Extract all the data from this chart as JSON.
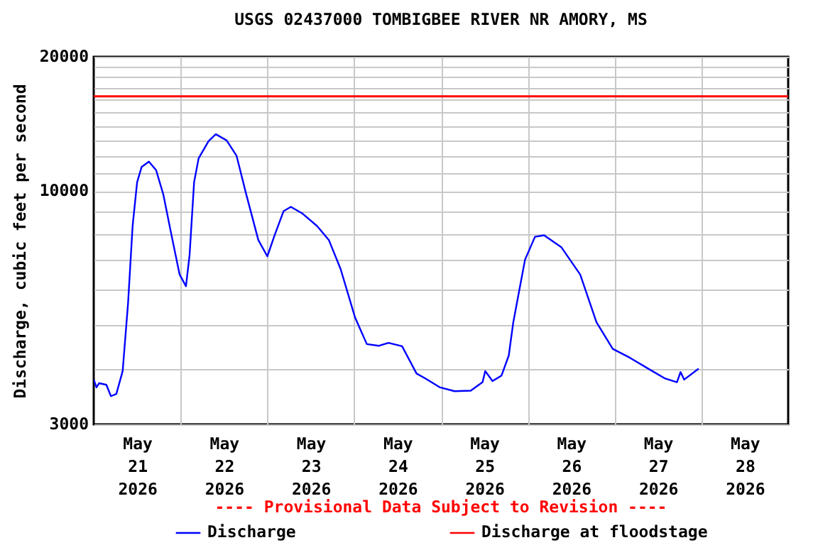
{
  "chart_data": {
    "type": "line",
    "title": "USGS 02437000 TOMBIGBEE RIVER NR AMORY, MS",
    "ylabel": "Discharge, cubic feet per second",
    "annotations": [
      "---- Provisional Data Subject to Revision ----"
    ],
    "x": [
      "2026-05-21T00:00",
      "2026-05-21T00:45",
      "2026-05-21T01:30",
      "2026-05-21T03:30",
      "2026-05-21T04:45",
      "2026-05-21T06:15",
      "2026-05-21T08:00",
      "2026-05-21T09:30",
      "2026-05-21T10:45",
      "2026-05-21T12:00",
      "2026-05-21T13:15",
      "2026-05-21T15:15",
      "2026-05-21T17:15",
      "2026-05-21T19:15",
      "2026-05-21T21:15",
      "2026-05-21T23:45",
      "2026-05-22T01:30",
      "2026-05-22T02:30",
      "2026-05-22T03:45",
      "2026-05-22T05:00",
      "2026-05-22T07:45",
      "2026-05-22T09:45",
      "2026-05-22T12:45",
      "2026-05-22T15:30",
      "2026-05-22T18:00",
      "2026-05-22T21:30",
      "2026-05-23T00:00",
      "2026-05-23T02:00",
      "2026-05-23T04:30",
      "2026-05-23T06:30",
      "2026-05-23T09:45",
      "2026-05-23T13:45",
      "2026-05-23T17:00",
      "2026-05-23T20:15",
      "2026-05-24T00:15",
      "2026-05-24T03:30",
      "2026-05-24T06:45",
      "2026-05-24T09:30",
      "2026-05-24T13:15",
      "2026-05-24T17:15",
      "2026-05-24T19:45",
      "2026-05-24T23:45",
      "2026-05-25T03:45",
      "2026-05-25T08:15",
      "2026-05-25T11:30",
      "2026-05-25T12:15",
      "2026-05-25T14:15",
      "2026-05-25T16:45",
      "2026-05-25T18:45",
      "2026-05-25T20:00",
      "2026-05-25T21:30",
      "2026-05-25T23:15",
      "2026-05-26T02:00",
      "2026-05-26T04:30",
      "2026-05-26T09:15",
      "2026-05-26T14:30",
      "2026-05-26T19:00",
      "2026-05-26T23:30",
      "2026-05-27T04:15",
      "2026-05-27T09:30",
      "2026-05-27T14:00",
      "2026-05-27T17:15",
      "2026-05-27T18:15",
      "2026-05-27T19:15",
      "2026-05-27T23:15"
    ],
    "series": [
      {
        "name": "Discharge",
        "color": "#0000ff",
        "values": [
          3780,
          3630,
          3710,
          3680,
          3470,
          3510,
          3950,
          5620,
          8350,
          10470,
          11330,
          11640,
          11140,
          9820,
          8150,
          6500,
          6120,
          7190,
          10470,
          11840,
          12940,
          13410,
          12990,
          11990,
          9950,
          7770,
          7140,
          7960,
          9020,
          9220,
          8900,
          8350,
          7770,
          6690,
          5210,
          4540,
          4500,
          4570,
          4490,
          3900,
          3800,
          3630,
          3560,
          3570,
          3730,
          3950,
          3750,
          3860,
          4280,
          5080,
          5900,
          7020,
          7900,
          7960,
          7490,
          6500,
          5080,
          4430,
          4230,
          3990,
          3800,
          3730,
          3930,
          3780,
          4000
        ]
      }
    ],
    "ref_lines": [
      {
        "axis": "y",
        "value": 16300,
        "label": "Discharge at floodstage",
        "color": "#ff0000"
      }
    ],
    "xlim": [
      "2026-05-21T00:00",
      "2026-05-29T00:00"
    ],
    "xticks": [
      {
        "value": "2026-05-21T12:00",
        "label": "May 21 2026"
      },
      {
        "value": "2026-05-22T00:00",
        "label": null
      },
      {
        "value": "2026-05-22T12:00",
        "label": "May 22 2026"
      },
      {
        "value": "2026-05-23T00:00",
        "label": null
      },
      {
        "value": "2026-05-23T12:00",
        "label": "May 23 2026"
      },
      {
        "value": "2026-05-24T00:00",
        "label": null
      },
      {
        "value": "2026-05-24T12:00",
        "label": "May 24 2026"
      },
      {
        "value": "2026-05-25T00:00",
        "label": null
      },
      {
        "value": "2026-05-25T12:00",
        "label": "May 25 2026"
      },
      {
        "value": "2026-05-26T00:00",
        "label": null
      },
      {
        "value": "2026-05-26T12:00",
        "label": "May 26 2026"
      },
      {
        "value": "2026-05-27T00:00",
        "label": null
      },
      {
        "value": "2026-05-27T12:00",
        "label": "May 27 2026"
      },
      {
        "value": "2026-05-28T00:00",
        "label": null
      },
      {
        "value": "2026-05-28T12:00",
        "label": "May 28 2026"
      }
    ],
    "ylim": [
      3000,
      20000
    ],
    "yticks": [
      3000,
      {
        "value": 4000,
        "label": null
      },
      {
        "value": 5000,
        "label": null
      },
      {
        "value": 6000,
        "label": null
      },
      {
        "value": 7000,
        "label": null
      },
      {
        "value": 8000,
        "label": null
      },
      {
        "value": 9000,
        "label": null
      },
      10000,
      {
        "value": 11000,
        "label": null
      },
      {
        "value": 12000,
        "label": null
      },
      {
        "value": 13000,
        "label": null
      },
      {
        "value": 14000,
        "label": null
      },
      {
        "value": 15000,
        "label": null
      },
      {
        "value": 16000,
        "label": null
      },
      {
        "value": 17000,
        "label": null
      },
      {
        "value": 18000,
        "label": null
      },
      {
        "value": 19000,
        "label": null
      },
      20000
    ],
    "log": true,
    "grid": true,
    "legend": "bottom"
  }
}
